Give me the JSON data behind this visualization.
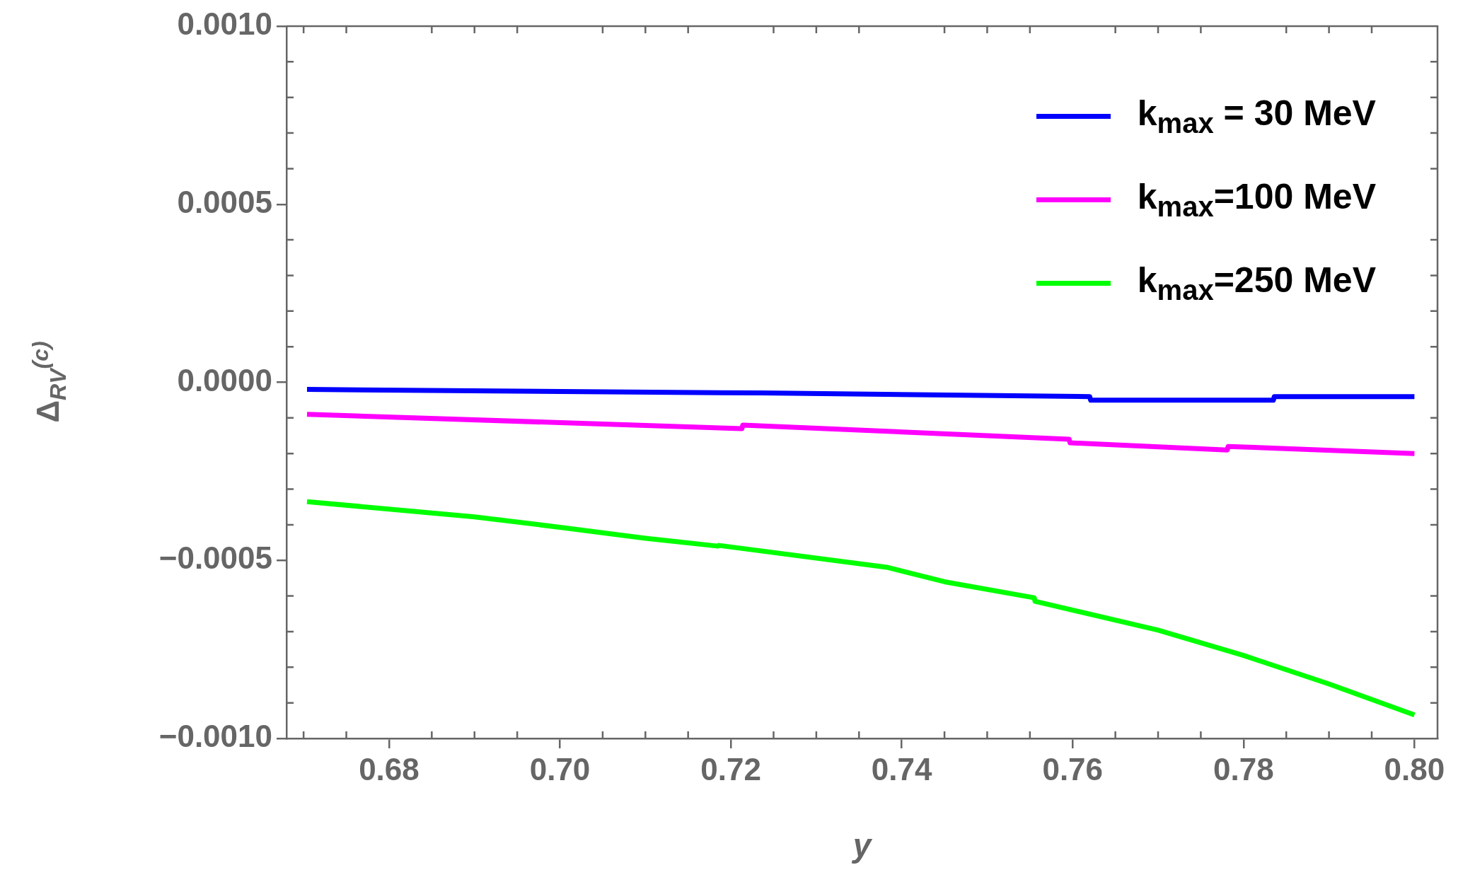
{
  "chart_data": {
    "type": "line",
    "xlabel": "y",
    "ylabel": "Δ$_{R}$$_{V}$$^{(c)}$",
    "xlim": [
      0.668,
      0.8027
    ],
    "ylim": [
      -0.001,
      0.001
    ],
    "xticks": [
      {
        "value": 0.68,
        "label": "0.68"
      },
      {
        "value": 0.7,
        "label": "0.70"
      },
      {
        "value": 0.72,
        "label": "0.72"
      },
      {
        "value": 0.74,
        "label": "0.74"
      },
      {
        "value": 0.76,
        "label": "0.76"
      },
      {
        "value": 0.78,
        "label": "0.78"
      },
      {
        "value": 0.8,
        "label": "0.80"
      }
    ],
    "yticks": [
      {
        "value": -0.001,
        "label": "−0.0010"
      },
      {
        "value": -0.0005,
        "label": "−0.0005"
      },
      {
        "value": 0,
        "label": "0.0000"
      },
      {
        "value": 0.0005,
        "label": "0.0005"
      },
      {
        "value": 0.001,
        "label": "0.0010"
      }
    ],
    "grid": false,
    "legend": "top right",
    "marker": "none",
    "line_style": "solid",
    "series": [
      {
        "name": "k$_{max}$ = 30 MeV",
        "color": "#0000ff",
        "x": [
          0.6704,
          0.7235,
          0.7236,
          0.762,
          0.7621,
          0.7835,
          0.7836,
          0.8
        ],
        "values": [
          -2e-05,
          -3e-05,
          -3e-05,
          -4e-05,
          -5e-05,
          -5e-05,
          -4e-05,
          -4e-05
        ]
      },
      {
        "name": "k$_{max}$=100 MeV",
        "color": "#ff00ff",
        "x": [
          0.6704,
          0.7213,
          0.7214,
          0.7596,
          0.7597,
          0.7781,
          0.7782,
          0.8
        ],
        "values": [
          -9e-05,
          -0.00013,
          -0.00012,
          -0.00016,
          -0.00017,
          -0.00019,
          -0.00018,
          -0.0002
        ]
      },
      {
        "name": "k$_{max}$=250 MeV",
        "color": "#00ff00",
        "x": [
          0.6704,
          0.69,
          0.7,
          0.71,
          0.7185,
          0.7186,
          0.7384,
          0.745,
          0.7555,
          0.7556,
          0.77,
          0.78,
          0.79,
          0.8
        ],
        "values": [
          -0.000335,
          -0.000378,
          -0.000407,
          -0.000438,
          -0.00046,
          -0.000458,
          -0.00052,
          -0.00056,
          -0.000605,
          -0.000615,
          -0.000696,
          -0.000767,
          -0.000847,
          -0.000934
        ]
      }
    ]
  }
}
